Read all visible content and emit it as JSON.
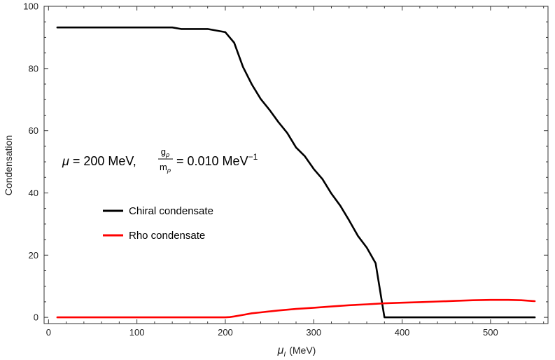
{
  "chart_data": {
    "type": "line",
    "xlabel_symbol": "μ",
    "xlabel_subscript": "I",
    "xlabel_unit": "(MeV)",
    "ylabel": "Condensation",
    "xlim": [
      -5,
      565
    ],
    "ylim": [
      -2,
      100
    ],
    "xticks": [
      0,
      100,
      200,
      300,
      400,
      500
    ],
    "yticks": [
      0,
      20,
      40,
      60,
      80,
      100
    ],
    "grid": false,
    "legend_position": "left-middle",
    "annotation": {
      "mu_symbol": "μ",
      "mu_text": " = 200 MeV,",
      "frac_num": "g",
      "frac_num_sub": "ρ",
      "frac_den": "m",
      "frac_den_sub": "ρ",
      "rhs": "= 0.010 MeV",
      "rhs_exp": "−1"
    },
    "series": [
      {
        "name": "Chiral condensate",
        "color": "#000000",
        "x": [
          10,
          140,
          150,
          180,
          200,
          210,
          220,
          230,
          240,
          250,
          260,
          270,
          280,
          290,
          300,
          310,
          320,
          330,
          340,
          350,
          360,
          370,
          380,
          390,
          550
        ],
        "y": [
          93.2,
          93.2,
          92.7,
          92.7,
          91.7,
          88.3,
          80.5,
          74.9,
          70.2,
          66.7,
          62.8,
          59.3,
          54.6,
          51.8,
          47.7,
          44.4,
          39.8,
          35.9,
          31.2,
          26.2,
          22.4,
          17.4,
          0,
          0,
          0
        ]
      },
      {
        "name": "Rho condensate",
        "color": "#ff0000",
        "x": [
          10,
          200,
          205,
          210,
          220,
          230,
          240,
          260,
          280,
          300,
          320,
          340,
          360,
          380,
          400,
          420,
          440,
          460,
          480,
          500,
          520,
          535,
          550
        ],
        "y": [
          0,
          0,
          0.1,
          0.3,
          0.8,
          1.3,
          1.6,
          2.2,
          2.7,
          3.1,
          3.5,
          3.9,
          4.2,
          4.5,
          4.7,
          4.9,
          5.1,
          5.3,
          5.5,
          5.6,
          5.6,
          5.5,
          5.2
        ]
      }
    ]
  }
}
